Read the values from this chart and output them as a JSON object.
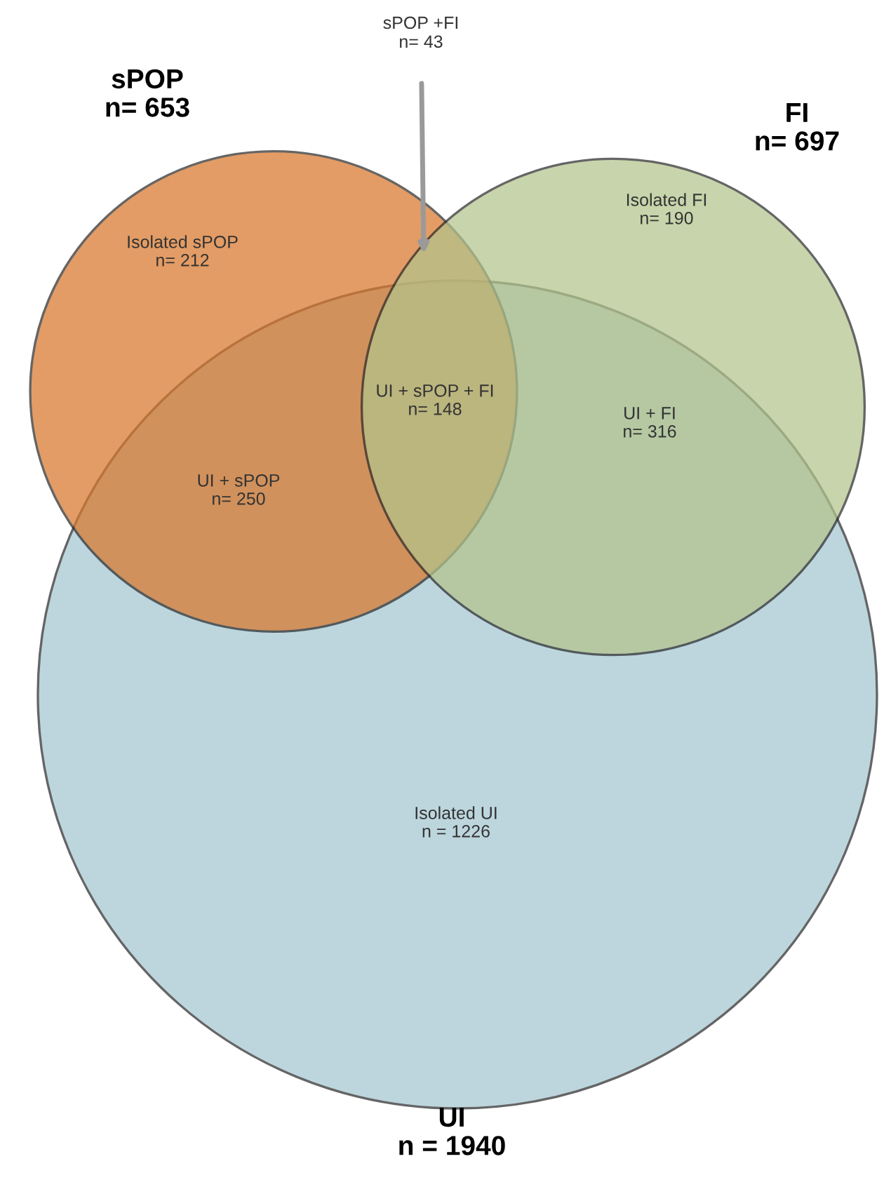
{
  "chart_data": {
    "type": "other",
    "categories": [
      "sPOP",
      "FI",
      "UI",
      "Isolated sPOP",
      "sPOP +FI",
      "Isolated FI",
      "UI + sPOP + FI",
      "UI + sPOP",
      "UI + FI",
      "Isolated UI"
    ],
    "values": [
      653,
      697,
      1940,
      212,
      43,
      190,
      148,
      250,
      316,
      1226
    ],
    "value_labels": [
      "n= 653",
      "n= 697",
      "n = 1940",
      "n= 212",
      "n= 43",
      "n= 190",
      "n= 148",
      "n= 250",
      "n= 316",
      "n = 1226"
    ],
    "colors": [
      "#d9772b",
      "#b3c48c",
      "#a5c7d2",
      "#333333",
      "#333333",
      "#333333",
      "#333333",
      "#333333",
      "#333333",
      "#333333"
    ]
  }
}
